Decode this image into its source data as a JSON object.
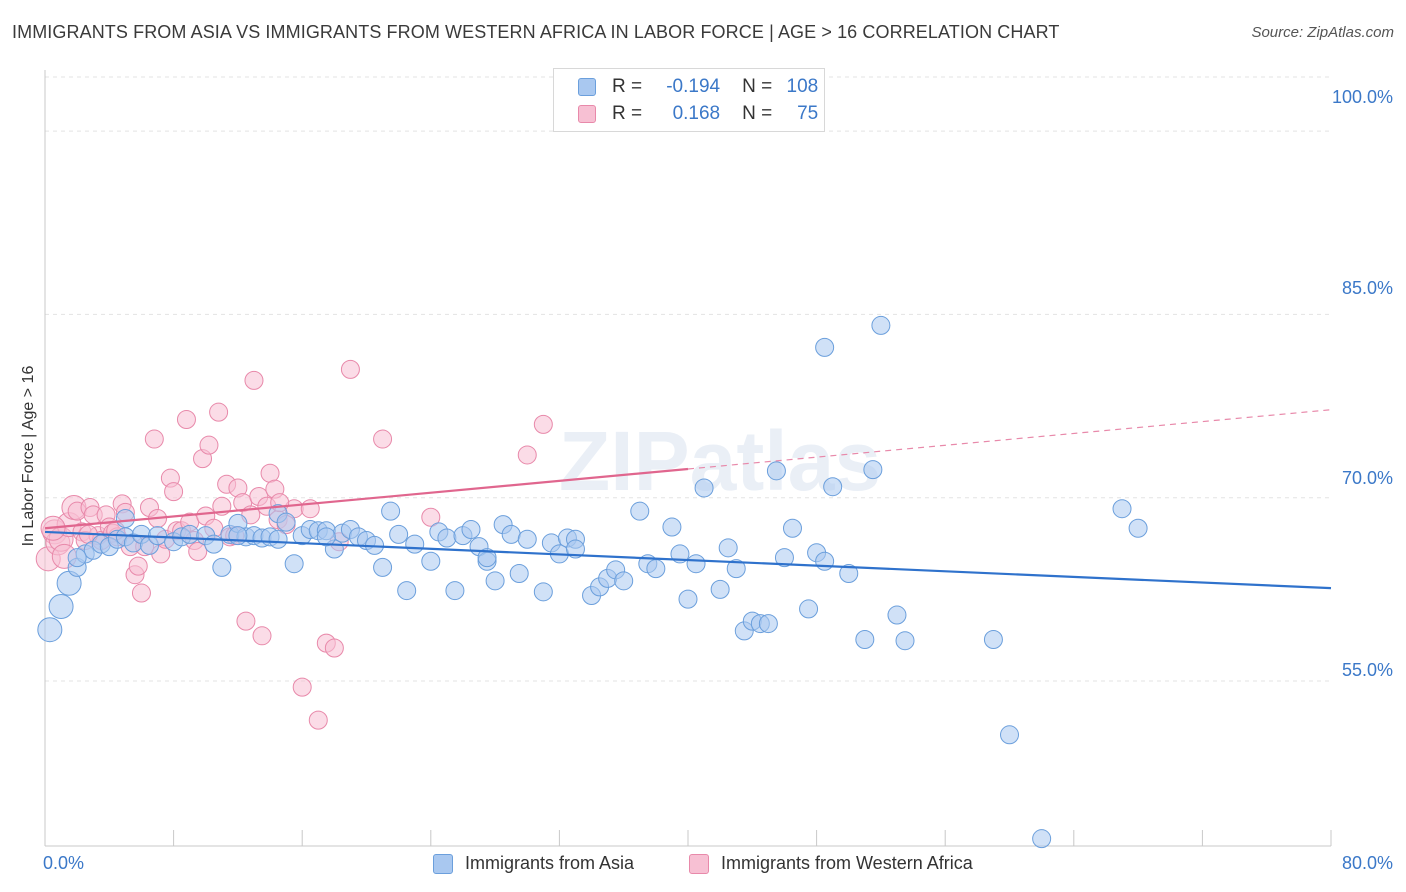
{
  "title": "IMMIGRANTS FROM ASIA VS IMMIGRANTS FROM WESTERN AFRICA IN LABOR FORCE | AGE > 16 CORRELATION CHART",
  "source": "Source: ZipAtlas.com",
  "watermark": "ZIPatlas",
  "legend": {
    "r_label": "R =",
    "n_label": "N =",
    "rows": [
      {
        "r": "-0.194",
        "n": "108",
        "color": "#a9c8f0",
        "border": "#6b9fdc"
      },
      {
        "r": "0.168",
        "n": "75",
        "color": "#f7c0d3",
        "border": "#e889aa"
      }
    ]
  },
  "chart_data": {
    "type": "scatter",
    "title": "IMMIGRANTS FROM ASIA VS IMMIGRANTS FROM WESTERN AFRICA IN LABOR FORCE | AGE > 16 CORRELATION CHART",
    "xlabel": "",
    "ylabel": "In Labor Force | Age > 16",
    "xlim": [
      0,
      80
    ],
    "ylim": [
      41.5,
      105
    ],
    "x_tick_labels": [
      "0.0%",
      "80.0%"
    ],
    "y_ticks": [
      55,
      70,
      85,
      100
    ],
    "y_tick_labels": [
      "55.0%",
      "70.0%",
      "85.0%",
      "100.0%"
    ],
    "grid": true,
    "legend_position": "top-center",
    "series": [
      {
        "name": "Immigrants from Asia",
        "color": "#6b9fdc",
        "fill": "#a9c8f0",
        "trend": {
          "x": [
            0,
            80
          ],
          "y": [
            67.2,
            62.6
          ],
          "dashed_from": null
        },
        "points": [
          [
            0.3,
            59.2
          ],
          [
            1.0,
            61.1
          ],
          [
            1.5,
            63.0
          ],
          [
            2.0,
            64.3
          ],
          [
            2.5,
            65.4
          ],
          [
            3.0,
            65.7
          ],
          [
            3.5,
            66.2
          ],
          [
            4.0,
            66.0
          ],
          [
            4.5,
            66.6
          ],
          [
            5.0,
            66.8
          ],
          [
            5.5,
            66.3
          ],
          [
            6.0,
            67.0
          ],
          [
            6.5,
            66.1
          ],
          [
            7.0,
            66.9
          ],
          [
            8.0,
            66.4
          ],
          [
            8.5,
            66.8
          ],
          [
            9.0,
            67.0
          ],
          [
            10.0,
            66.9
          ],
          [
            11.0,
            64.3
          ],
          [
            11.5,
            67.0
          ],
          [
            12.0,
            67.9
          ],
          [
            12.5,
            66.8
          ],
          [
            13.0,
            66.9
          ],
          [
            13.5,
            66.7
          ],
          [
            14.0,
            66.8
          ],
          [
            14.5,
            68.7
          ],
          [
            15.0,
            68.0
          ],
          [
            15.5,
            64.6
          ],
          [
            16.0,
            66.9
          ],
          [
            16.5,
            67.4
          ],
          [
            17.0,
            67.3
          ],
          [
            17.5,
            67.3
          ],
          [
            18.0,
            65.8
          ],
          [
            18.5,
            67.1
          ],
          [
            19.0,
            67.4
          ],
          [
            19.5,
            66.8
          ],
          [
            20.0,
            66.5
          ],
          [
            20.5,
            66.1
          ],
          [
            21.0,
            64.3
          ],
          [
            21.5,
            68.9
          ],
          [
            22.0,
            67.0
          ],
          [
            22.5,
            62.4
          ],
          [
            23.0,
            66.2
          ],
          [
            24.0,
            64.8
          ],
          [
            24.5,
            67.2
          ],
          [
            25.0,
            66.7
          ],
          [
            25.5,
            62.4
          ],
          [
            26.0,
            66.9
          ],
          [
            26.5,
            67.4
          ],
          [
            27.0,
            66.0
          ],
          [
            27.5,
            64.8
          ],
          [
            28.0,
            63.2
          ],
          [
            28.5,
            67.8
          ],
          [
            29.0,
            67.0
          ],
          [
            29.5,
            63.8
          ],
          [
            30.0,
            66.6
          ],
          [
            31.0,
            62.3
          ],
          [
            31.5,
            66.3
          ],
          [
            32.0,
            65.4
          ],
          [
            32.5,
            66.7
          ],
          [
            33.0,
            66.6
          ],
          [
            34.0,
            62.0
          ],
          [
            34.5,
            62.7
          ],
          [
            35.0,
            63.4
          ],
          [
            35.5,
            64.1
          ],
          [
            36.0,
            63.2
          ],
          [
            37.0,
            68.9
          ],
          [
            37.5,
            64.6
          ],
          [
            38.0,
            64.2
          ],
          [
            39.0,
            67.6
          ],
          [
            39.5,
            65.4
          ],
          [
            40.0,
            61.7
          ],
          [
            40.5,
            64.6
          ],
          [
            41.0,
            70.8
          ],
          [
            42.0,
            62.5
          ],
          [
            42.5,
            65.9
          ],
          [
            43.0,
            64.2
          ],
          [
            43.5,
            59.1
          ],
          [
            44.0,
            59.9
          ],
          [
            44.5,
            59.7
          ],
          [
            45.0,
            59.7
          ],
          [
            45.5,
            72.2
          ],
          [
            46.0,
            65.1
          ],
          [
            46.5,
            67.5
          ],
          [
            47.5,
            60.9
          ],
          [
            48.0,
            65.5
          ],
          [
            48.5,
            64.8
          ],
          [
            49.0,
            70.9
          ],
          [
            50.0,
            63.8
          ],
          [
            51.0,
            58.4
          ],
          [
            51.5,
            72.3
          ],
          [
            52.0,
            84.1
          ],
          [
            53.0,
            60.4
          ],
          [
            53.5,
            58.3
          ],
          [
            48.5,
            82.3
          ],
          [
            59.0,
            58.4
          ],
          [
            60.0,
            50.6
          ],
          [
            62.0,
            42.1
          ],
          [
            67.0,
            69.1
          ],
          [
            68.0,
            67.5
          ],
          [
            2.0,
            65.1
          ],
          [
            5.0,
            68.3
          ],
          [
            10.5,
            66.2
          ],
          [
            14.5,
            66.6
          ],
          [
            17.5,
            66.8
          ],
          [
            27.5,
            65.1
          ],
          [
            33.0,
            65.8
          ],
          [
            12.0,
            66.9
          ]
        ]
      },
      {
        "name": "Immigrants from Western Africa",
        "color": "#e889aa",
        "fill": "#f7c0d3",
        "trend": {
          "x": [
            0,
            80
          ],
          "y": [
            67.5,
            77.2
          ],
          "dashed_from": 40
        },
        "points": [
          [
            0.2,
            65.0
          ],
          [
            0.6,
            67.2
          ],
          [
            0.8,
            66.3
          ],
          [
            1.0,
            66.6
          ],
          [
            1.2,
            65.2
          ],
          [
            1.5,
            67.8
          ],
          [
            1.8,
            69.2
          ],
          [
            2.0,
            68.9
          ],
          [
            2.3,
            67.2
          ],
          [
            2.5,
            66.5
          ],
          [
            2.8,
            69.2
          ],
          [
            3.0,
            68.6
          ],
          [
            3.3,
            66.9
          ],
          [
            3.5,
            66.5
          ],
          [
            3.8,
            68.6
          ],
          [
            4.0,
            67.6
          ],
          [
            4.2,
            67.1
          ],
          [
            4.5,
            66.8
          ],
          [
            4.8,
            69.5
          ],
          [
            5.0,
            68.8
          ],
          [
            5.3,
            66.0
          ],
          [
            5.6,
            63.7
          ],
          [
            5.8,
            64.4
          ],
          [
            6.0,
            62.2
          ],
          [
            6.2,
            66.0
          ],
          [
            6.5,
            69.2
          ],
          [
            6.8,
            74.8
          ],
          [
            7.0,
            68.3
          ],
          [
            7.2,
            65.4
          ],
          [
            7.5,
            66.6
          ],
          [
            7.8,
            71.6
          ],
          [
            8.0,
            70.5
          ],
          [
            8.2,
            67.3
          ],
          [
            8.5,
            67.3
          ],
          [
            8.8,
            76.4
          ],
          [
            9.0,
            68.0
          ],
          [
            9.3,
            66.5
          ],
          [
            9.5,
            65.6
          ],
          [
            9.8,
            73.2
          ],
          [
            10.0,
            68.5
          ],
          [
            10.2,
            74.3
          ],
          [
            10.5,
            67.5
          ],
          [
            10.8,
            77.0
          ],
          [
            11.0,
            69.3
          ],
          [
            11.3,
            71.1
          ],
          [
            11.5,
            66.8
          ],
          [
            11.8,
            66.9
          ],
          [
            12.0,
            70.8
          ],
          [
            12.3,
            69.6
          ],
          [
            12.5,
            59.9
          ],
          [
            12.8,
            68.6
          ],
          [
            13.0,
            79.6
          ],
          [
            13.3,
            70.1
          ],
          [
            13.5,
            58.7
          ],
          [
            13.8,
            69.3
          ],
          [
            14.0,
            72.0
          ],
          [
            14.3,
            70.7
          ],
          [
            14.5,
            68.2
          ],
          [
            15.0,
            67.8
          ],
          [
            15.5,
            69.1
          ],
          [
            14.6,
            69.6
          ],
          [
            16.0,
            54.5
          ],
          [
            16.5,
            69.1
          ],
          [
            17.0,
            51.8
          ],
          [
            17.5,
            58.1
          ],
          [
            18.0,
            57.7
          ],
          [
            18.3,
            66.4
          ],
          [
            19.0,
            80.5
          ],
          [
            21.0,
            74.8
          ],
          [
            24.0,
            68.4
          ],
          [
            30.0,
            73.5
          ],
          [
            31.0,
            76.0
          ],
          [
            0.5,
            67.5
          ],
          [
            2.7,
            67.0
          ],
          [
            4.4,
            67.3
          ]
        ]
      }
    ]
  },
  "bottom_legend": {
    "asia_label": "Immigrants from Asia",
    "wafrica_label": "Immigrants from Western Africa"
  }
}
